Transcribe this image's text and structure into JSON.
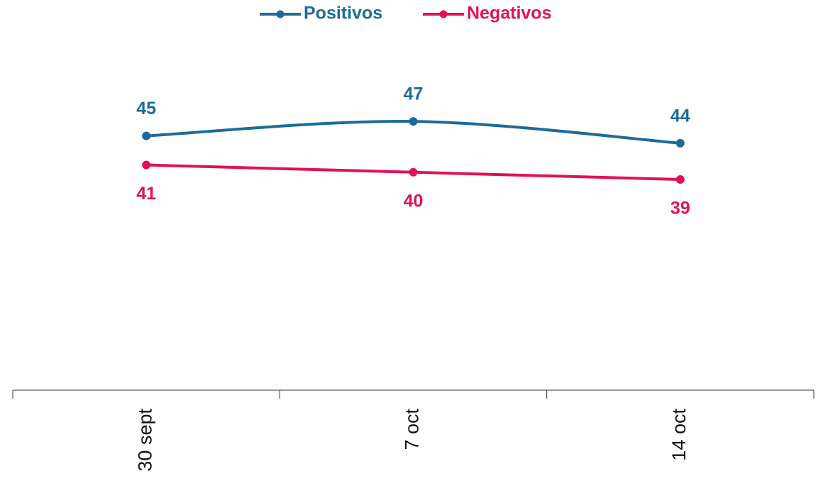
{
  "chart_data": {
    "type": "line",
    "categories": [
      "30 sept",
      "7 oct",
      "14 oct"
    ],
    "series": [
      {
        "name": "Positivos",
        "color": "#1c6b9b",
        "values": [
          45,
          47,
          44
        ]
      },
      {
        "name": "Negativos",
        "color": "#e0115a",
        "values": [
          41,
          40,
          39
        ]
      }
    ],
    "ylim": [
      10,
      60
    ]
  }
}
